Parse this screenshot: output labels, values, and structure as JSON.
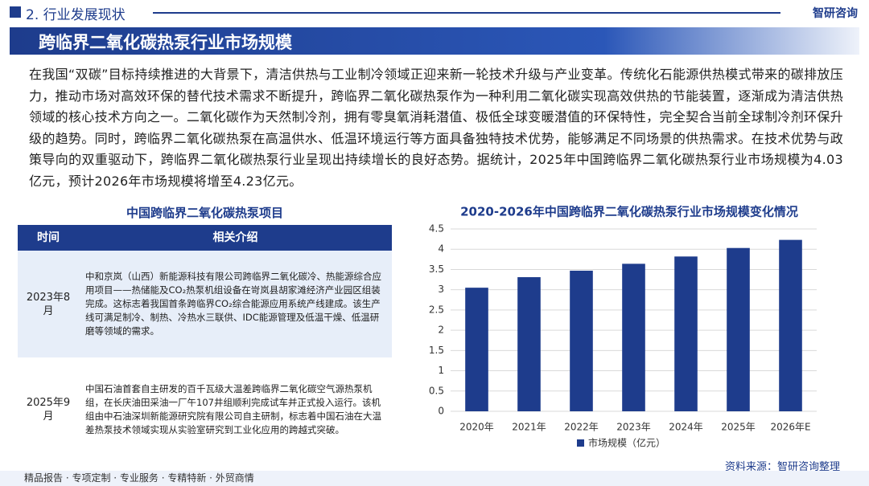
{
  "header": {
    "section": "2. 行业发展现状",
    "logo": "智研咨询"
  },
  "title": "跨临界二氧化碳热泵行业市场规模",
  "paragraph": "在我国“双碳”目标持续推进的大背景下，清洁供热与工业制冷领域正迎来新一轮技术升级与产业变革。传统化石能源供热模式带来的碳排放压力，推动市场对高效环保的替代技术需求不断提升，跨临界二氧化碳热泵作为一种利用二氧化碳实现高效供热的节能装置，逐渐成为清洁供热领域的核心技术方向之一。二氧化碳作为天然制冷剂，拥有零臭氧消耗潜值、极低全球变暖潜值的环保特性，完全契合当前全球制冷剂环保升级的趋势。同时，跨临界二氧化碳热泵在高温供水、低温环境运行等方面具备独特技术优势，能够满足不同场景的供热需求。在技术优势与政策导向的双重驱动下，跨临界二氧化碳热泵行业呈现出持续增长的良好态势。据统计，2025年中国跨临界二氧化碳热泵行业市场规模为4.03亿元，预计2026年市场规模将增至4.23亿元。",
  "table": {
    "title": "中国跨临界二氧化碳热泵项目",
    "columns": [
      "时间",
      "相关介绍"
    ],
    "rows": [
      [
        "2023年8月",
        "中和京岚（山西）新能源科技有限公司跨临界二氧化碳冷、热能源综合应用项目——热储能及CO₂热泵机组设备在岢岚县胡家滩经济产业园区组装完成。这标志着我国首条跨临界CO₂综合能源应用系统产线建成。该生产线可满足制冷、制热、冷热水三联供、IDC能源管理及低温干燥、低温研磨等领域的需求。"
      ],
      [
        "2025年9月",
        "中国石油首套自主研发的百千瓦级大温差跨临界二氧化碳空气源热泵机组，在长庆油田采油一厂午107井组顺利完成试车并正式投入运行。该机组由中石油深圳新能源研究院有限公司自主研制，标志着中国石油在大温差热泵技术领域实现从实验室研究到工业化应用的跨越式突破。"
      ]
    ]
  },
  "chart_data": {
    "type": "bar",
    "title": "2020-2026年中国跨临界二氧化碳热泵行业市场规模变化情况",
    "categories": [
      "2020年",
      "2021年",
      "2022年",
      "2023年",
      "2024年",
      "2025年",
      "2026年E"
    ],
    "series": [
      {
        "name": "市场规模（亿元）",
        "color": "#1e3c8c",
        "values": [
          3.05,
          3.31,
          3.47,
          3.64,
          3.82,
          4.03,
          4.23
        ]
      }
    ],
    "ylim": [
      0,
      4.5
    ],
    "yticks": [
      0,
      0.5,
      1,
      1.5,
      2,
      2.5,
      3,
      3.5,
      4,
      4.5
    ],
    "grid": true,
    "legend": "bottom"
  },
  "source": "资料来源：智研咨询整理",
  "footer": "精品报告 · 专项定制 · 专业服务 · 专精特新 · 外贸商情"
}
